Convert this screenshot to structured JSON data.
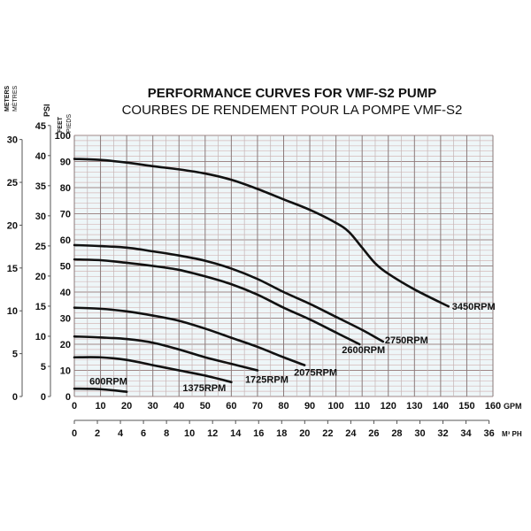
{
  "chart_data": {
    "type": "line",
    "title": "PERFORMANCE CURVES FOR VMF-S2 PUMP",
    "subtitle": "COURBES DE RENDEMENT POUR LA POMPE VMF-S2",
    "xlabel": "GPM",
    "x2label": "M³ PH",
    "ylabel": "FEET",
    "ylabel_fr": "PIEDS",
    "y2label": "PSI",
    "y3label": "METERS",
    "y3label_fr": "MÈTRES",
    "xlim": [
      0,
      160
    ],
    "ylim": [
      0,
      100
    ],
    "xticks": [
      0,
      10,
      20,
      30,
      40,
      50,
      60,
      70,
      80,
      90,
      100,
      110,
      120,
      130,
      140,
      150,
      160
    ],
    "x2ticks": [
      0,
      2,
      4,
      6,
      8,
      10,
      12,
      14,
      16,
      18,
      20,
      22,
      24,
      26,
      28,
      30,
      32,
      34,
      36
    ],
    "yticks": [
      0,
      10,
      20,
      30,
      40,
      50,
      60,
      70,
      80,
      90,
      100
    ],
    "psi_ticks": [
      0,
      5,
      10,
      15,
      20,
      25,
      30,
      35,
      40,
      45
    ],
    "meter_ticks": [
      0,
      5,
      10,
      15,
      20,
      25,
      30
    ],
    "grid": true,
    "series": [
      {
        "name": "3450RPM",
        "points": [
          [
            0,
            91
          ],
          [
            10,
            90.6
          ],
          [
            20,
            89.6
          ],
          [
            30,
            88.2
          ],
          [
            40,
            87
          ],
          [
            50,
            85.4
          ],
          [
            60,
            83
          ],
          [
            70,
            79.5
          ],
          [
            80,
            75.5
          ],
          [
            90,
            71.5
          ],
          [
            100,
            66.5
          ],
          [
            105,
            63
          ],
          [
            110,
            57
          ],
          [
            115,
            51
          ],
          [
            120,
            47
          ],
          [
            130,
            41
          ],
          [
            143,
            34.5
          ]
        ]
      },
      {
        "name": "2750RPM",
        "points": [
          [
            0,
            58
          ],
          [
            10,
            57.6
          ],
          [
            20,
            57
          ],
          [
            30,
            55.6
          ],
          [
            40,
            54
          ],
          [
            50,
            52
          ],
          [
            60,
            49
          ],
          [
            70,
            45
          ],
          [
            80,
            40
          ],
          [
            90,
            35.5
          ],
          [
            100,
            30.5
          ],
          [
            110,
            25.5
          ],
          [
            118,
            21
          ]
        ]
      },
      {
        "name": "2600RPM",
        "points": [
          [
            0,
            52.5
          ],
          [
            10,
            52.2
          ],
          [
            20,
            51.2
          ],
          [
            30,
            50
          ],
          [
            40,
            48.5
          ],
          [
            50,
            46
          ],
          [
            60,
            43
          ],
          [
            70,
            39
          ],
          [
            80,
            34
          ],
          [
            90,
            29.5
          ],
          [
            100,
            24.5
          ],
          [
            109,
            20
          ]
        ]
      },
      {
        "name": "2075RPM",
        "points": [
          [
            0,
            34
          ],
          [
            10,
            33.6
          ],
          [
            20,
            32.6
          ],
          [
            30,
            31
          ],
          [
            40,
            29
          ],
          [
            50,
            26
          ],
          [
            60,
            22.5
          ],
          [
            70,
            19
          ],
          [
            80,
            15
          ],
          [
            88,
            12
          ]
        ]
      },
      {
        "name": "1725RPM",
        "points": [
          [
            0,
            23
          ],
          [
            10,
            22.6
          ],
          [
            20,
            22
          ],
          [
            30,
            20.6
          ],
          [
            40,
            18
          ],
          [
            50,
            15
          ],
          [
            60,
            12.5
          ],
          [
            70,
            10
          ]
        ]
      },
      {
        "name": "1375RPM",
        "points": [
          [
            0,
            15
          ],
          [
            10,
            15
          ],
          [
            20,
            14
          ],
          [
            30,
            12
          ],
          [
            40,
            10
          ],
          [
            50,
            8
          ],
          [
            60,
            5.5
          ]
        ]
      },
      {
        "name": "600RPM",
        "points": [
          [
            0,
            3
          ],
          [
            10,
            2.8
          ],
          [
            20,
            1.8
          ]
        ]
      }
    ]
  }
}
